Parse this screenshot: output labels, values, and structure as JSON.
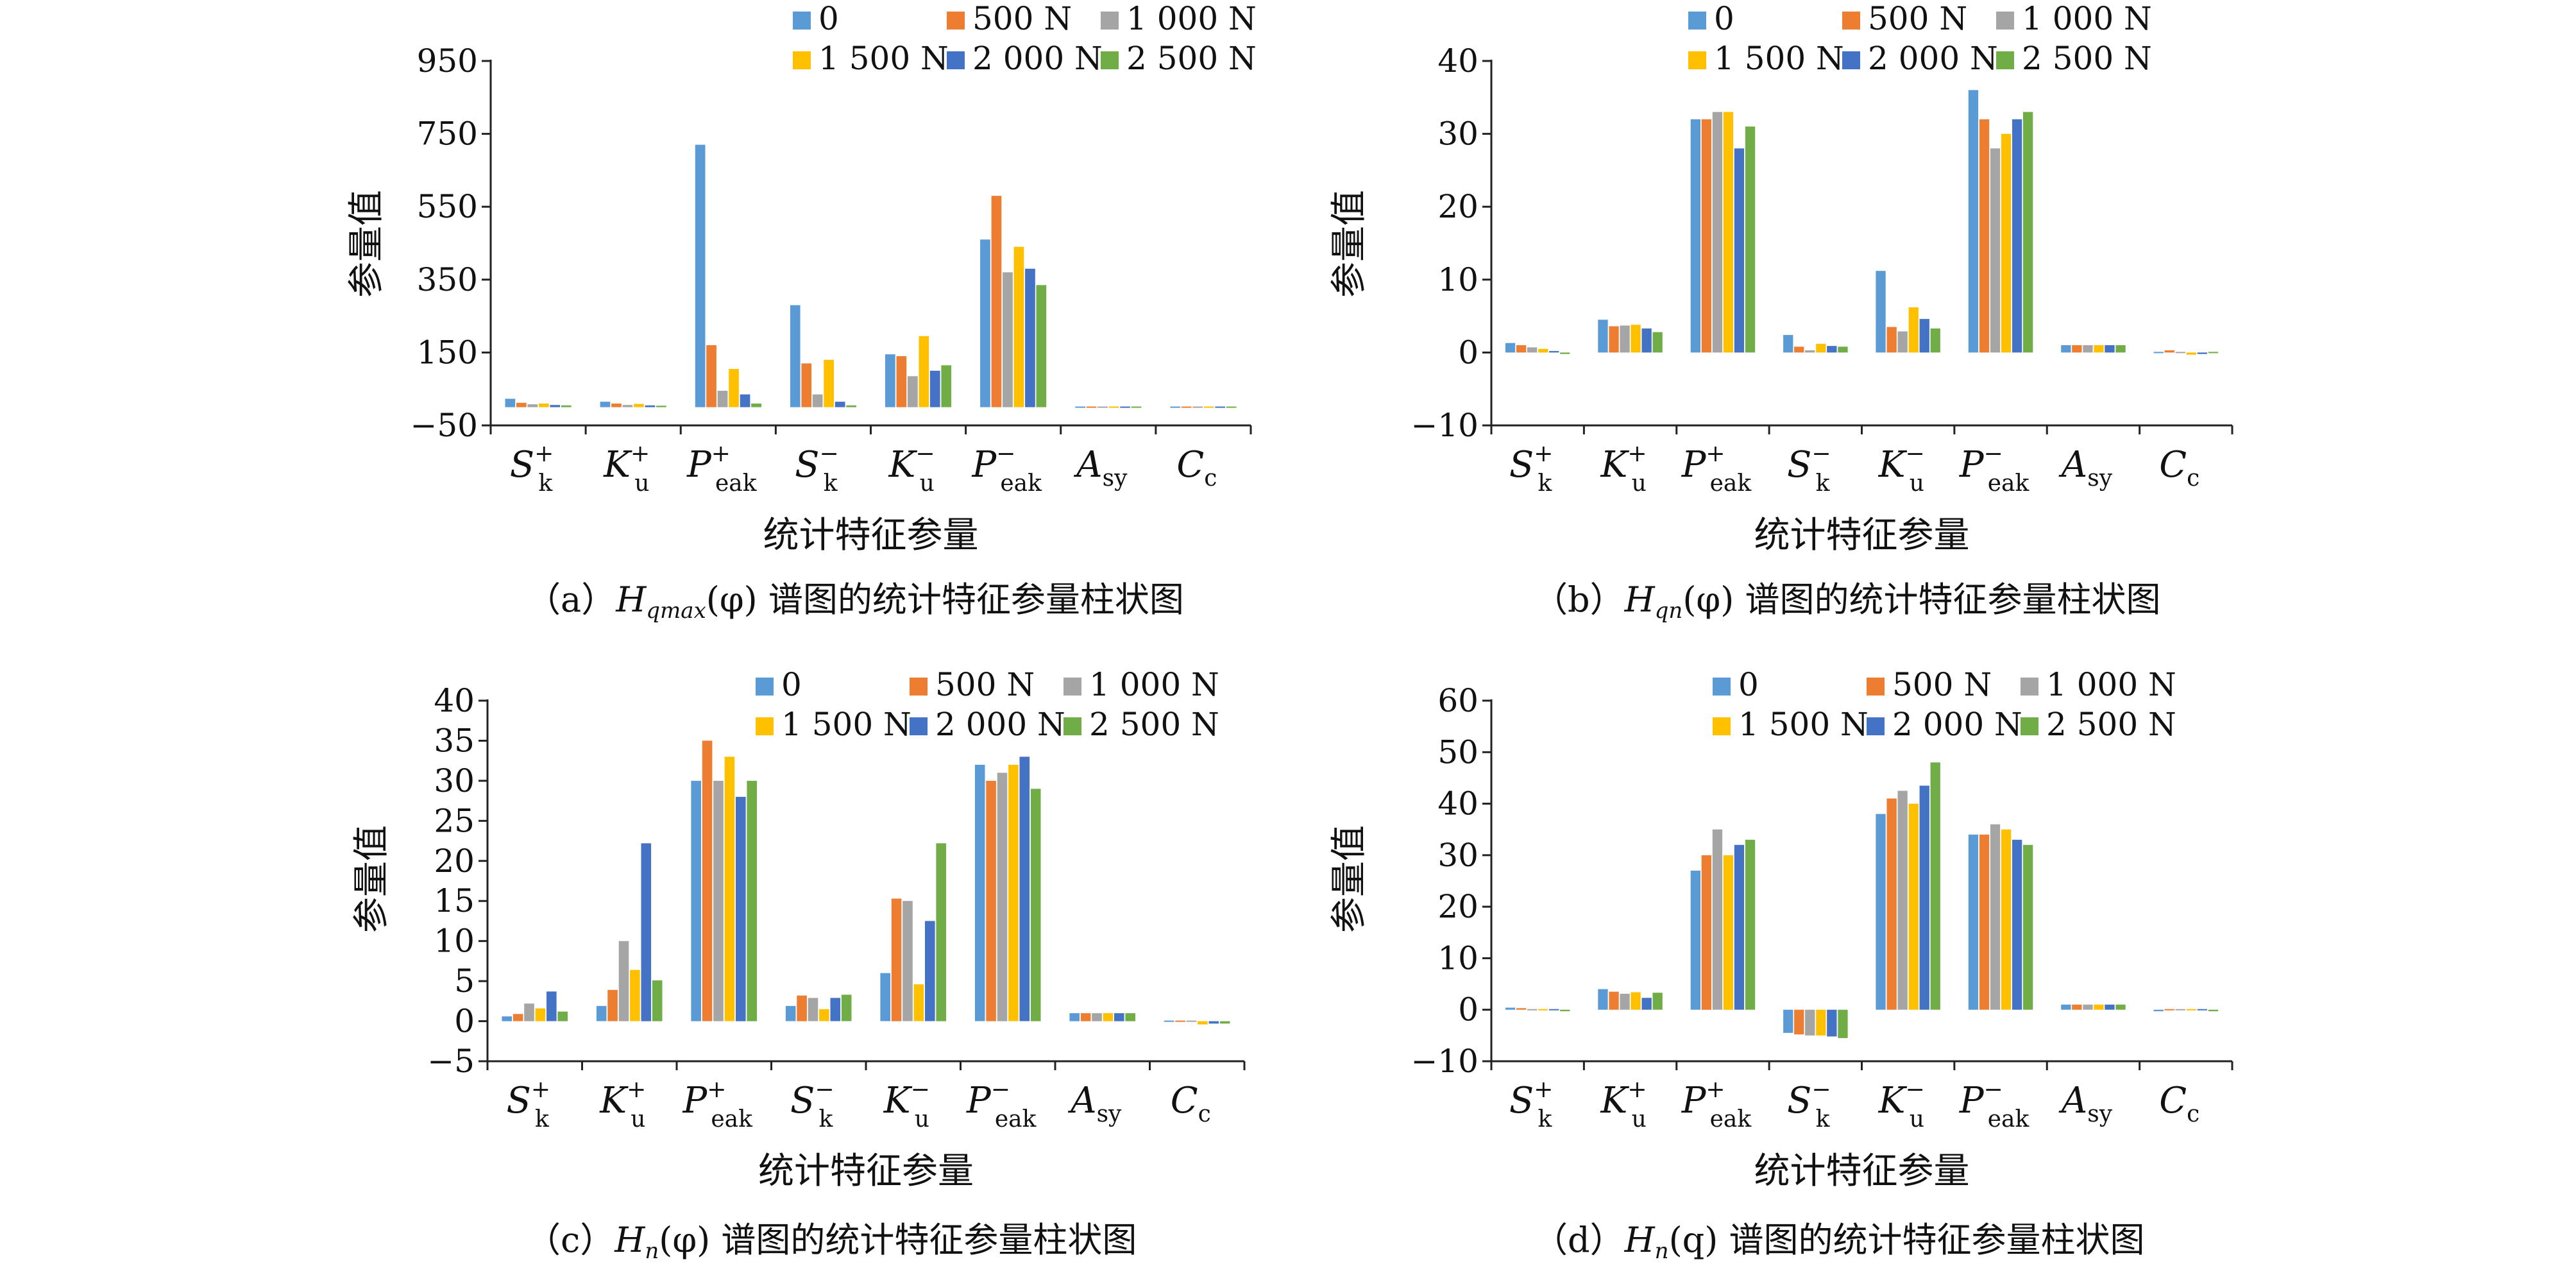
{
  "legend_labels": [
    "0",
    "500 N",
    "1 000 N",
    "1 500 N",
    "2 000 N",
    "2 500 N"
  ],
  "colors": [
    "#5b9bd5",
    "#ed7d31",
    "#a5a5a5",
    "#ffc000",
    "#4472c4",
    "#70ad47"
  ],
  "category_parts": [
    {
      "base": "S",
      "sup": "+",
      "sub": "k"
    },
    {
      "base": "K",
      "sup": "+",
      "sub": "u"
    },
    {
      "base": "P",
      "sup": "+",
      "sub": "eak"
    },
    {
      "base": "S",
      "sup": "−",
      "sub": "k"
    },
    {
      "base": "K",
      "sup": "−",
      "sub": "u"
    },
    {
      "base": "P",
      "sup": "−",
      "sub": "eak"
    },
    {
      "base": "A",
      "sup": "",
      "sub": "sy"
    },
    {
      "base": "C",
      "sup": "",
      "sub": "c"
    }
  ],
  "ylabel": "参量值",
  "xlabel": "统计特征参量",
  "captions": [
    {
      "prefix": "（a）",
      "base": "H",
      "sub": "qmax",
      "arg": "(φ)",
      "suffix": " 谱图的统计特征参量柱状图"
    },
    {
      "prefix": "（b）",
      "base": "H",
      "sub": "qn",
      "arg": "(φ)",
      "suffix": " 谱图的统计特征参量柱状图"
    },
    {
      "prefix": "（c）",
      "base": "H",
      "sub": "n",
      "arg": "(φ)",
      "suffix": " 谱图的统计特征参量柱状图"
    },
    {
      "prefix": "（d）",
      "base": "H",
      "sub": "n",
      "arg": "(q)",
      "suffix": " 谱图的统计特征参量柱状图"
    }
  ],
  "chart_data": [
    {
      "type": "bar",
      "categories": [
        "S_k^+",
        "K_u^+",
        "P_eak^+",
        "S_k^-",
        "K_u^-",
        "P_eak^-",
        "A_sy",
        "C_c"
      ],
      "ylim": [
        -50,
        950
      ],
      "yticks": [
        -50,
        150,
        350,
        550,
        750,
        950
      ],
      "ytick_labels": [
        "−50",
        "150",
        "350",
        "550",
        "750",
        "950"
      ],
      "series": [
        {
          "name": "0",
          "values": [
            23,
            15,
            720,
            280,
            145,
            460,
            1,
            0
          ]
        },
        {
          "name": "500 N",
          "values": [
            12,
            10,
            170,
            120,
            140,
            580,
            1,
            0
          ]
        },
        {
          "name": "1 000 N",
          "values": [
            8,
            6,
            45,
            35,
            85,
            370,
            1,
            0
          ]
        },
        {
          "name": "1 500 N",
          "values": [
            10,
            9,
            105,
            130,
            195,
            440,
            1,
            0
          ]
        },
        {
          "name": "2 000 N",
          "values": [
            6,
            5,
            35,
            15,
            100,
            380,
            1,
            0
          ]
        },
        {
          "name": "2 500 N",
          "values": [
            5,
            4,
            10,
            5,
            115,
            335,
            1,
            0
          ]
        }
      ]
    },
    {
      "type": "bar",
      "categories": [
        "S_k^+",
        "K_u^+",
        "P_eak^+",
        "S_k^-",
        "K_u^-",
        "P_eak^-",
        "A_sy",
        "C_c"
      ],
      "ylim": [
        -10,
        40
      ],
      "yticks": [
        -10,
        0,
        10,
        20,
        30,
        40
      ],
      "ytick_labels": [
        "−10",
        "0",
        "10",
        "20",
        "30",
        "40"
      ],
      "series": [
        {
          "name": "0",
          "values": [
            1.3,
            4.5,
            32,
            2.4,
            11.2,
            36,
            1,
            0
          ]
        },
        {
          "name": "500 N",
          "values": [
            1.0,
            3.6,
            32,
            0.8,
            3.5,
            32,
            1,
            0.3
          ]
        },
        {
          "name": "1 000 N",
          "values": [
            0.7,
            3.7,
            33,
            0.3,
            2.9,
            28,
            1,
            0.1
          ]
        },
        {
          "name": "1 500 N",
          "values": [
            0.5,
            3.8,
            33,
            1.2,
            6.2,
            30,
            1,
            -0.3
          ]
        },
        {
          "name": "2 000 N",
          "values": [
            0.2,
            3.3,
            28,
            0.9,
            4.6,
            32,
            1,
            -0.2
          ]
        },
        {
          "name": "2 500 N",
          "values": [
            -0.2,
            2.8,
            31,
            0.8,
            3.3,
            33,
            1,
            0.1
          ]
        }
      ]
    },
    {
      "type": "bar",
      "categories": [
        "S_k^+",
        "K_u^+",
        "P_eak^+",
        "S_k^-",
        "K_u^-",
        "P_eak^-",
        "A_sy",
        "C_c"
      ],
      "ylim": [
        -5,
        40
      ],
      "yticks": [
        -5,
        0,
        5,
        10,
        15,
        20,
        25,
        30,
        35,
        40
      ],
      "ytick_labels": [
        "−5",
        "0",
        "5",
        "10",
        "15",
        "20",
        "25",
        "30",
        "35",
        "40"
      ],
      "series": [
        {
          "name": "0",
          "values": [
            0.6,
            1.9,
            30,
            1.9,
            6.0,
            32,
            1,
            0
          ]
        },
        {
          "name": "500 N",
          "values": [
            0.9,
            3.9,
            35,
            3.2,
            15.3,
            30,
            1,
            0.1
          ]
        },
        {
          "name": "1 000 N",
          "values": [
            2.2,
            10.0,
            30,
            2.9,
            15.0,
            31,
            1,
            0
          ]
        },
        {
          "name": "1 500 N",
          "values": [
            1.6,
            6.4,
            33,
            1.5,
            4.6,
            32,
            1,
            -0.4
          ]
        },
        {
          "name": "2 000 N",
          "values": [
            3.7,
            22.2,
            28,
            2.9,
            12.5,
            33,
            1,
            -0.3
          ]
        },
        {
          "name": "2 500 N",
          "values": [
            1.2,
            5.1,
            30,
            3.3,
            22.2,
            29,
            1,
            -0.3
          ]
        }
      ]
    },
    {
      "type": "bar",
      "categories": [
        "S_k^+",
        "K_u^+",
        "P_eak^+",
        "S_k^-",
        "K_u^-",
        "P_eak^-",
        "A_sy",
        "C_c"
      ],
      "ylim": [
        -10,
        60
      ],
      "yticks": [
        -10,
        0,
        10,
        20,
        30,
        40,
        50,
        60
      ],
      "ytick_labels": [
        "−10",
        "0",
        "10",
        "20",
        "30",
        "40",
        "50",
        "60"
      ],
      "series": [
        {
          "name": "0",
          "values": [
            0.4,
            4.0,
            27,
            -4.5,
            38,
            34,
            1,
            -0.3
          ]
        },
        {
          "name": "500 N",
          "values": [
            0.3,
            3.5,
            30,
            -4.8,
            41,
            34,
            1,
            0
          ]
        },
        {
          "name": "1 000 N",
          "values": [
            0.2,
            3.1,
            35,
            -5.0,
            42.5,
            36,
            1,
            -0.1
          ]
        },
        {
          "name": "1 500 N",
          "values": [
            -0.2,
            3.4,
            30,
            -5.0,
            40,
            35,
            1,
            -0.2
          ]
        },
        {
          "name": "2 000 N",
          "values": [
            -0.1,
            2.3,
            32,
            -5.2,
            43.5,
            33,
            1,
            -0.2
          ]
        },
        {
          "name": "2 500 N",
          "values": [
            -0.3,
            3.3,
            33,
            -5.5,
            48,
            32,
            1,
            -0.3
          ]
        }
      ]
    }
  ]
}
